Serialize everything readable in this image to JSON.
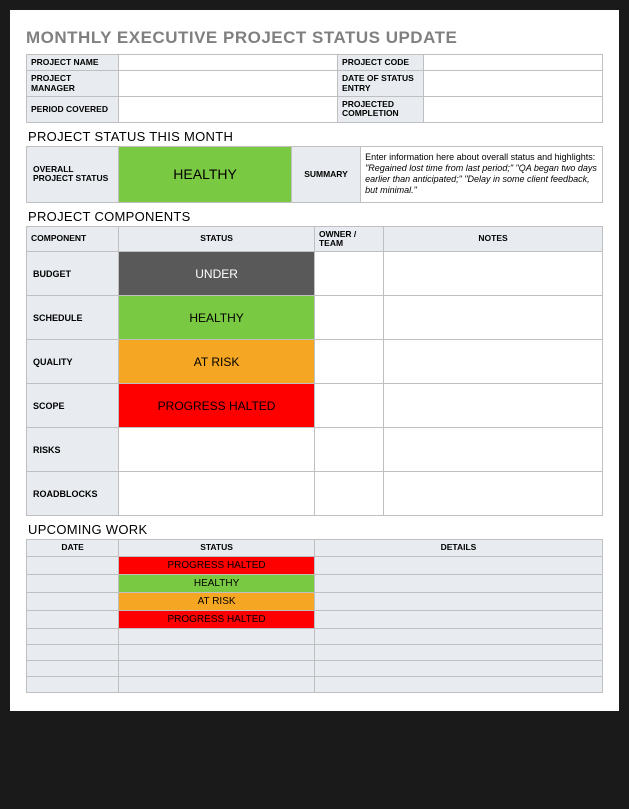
{
  "title": "MONTHLY EXECUTIVE PROJECT STATUS UPDATE",
  "colors": {
    "healthy": "#7ac943",
    "under": "#595959",
    "atrisk": "#f5a623",
    "halted": "#ff0000",
    "header_bg": "#e8ecf0",
    "border": "#bfbfbf",
    "page_bg": "#ffffff",
    "outer_bg": "#1a1a1a",
    "title_color": "#808080"
  },
  "meta": {
    "labels": {
      "project_name": "PROJECT NAME",
      "project_code": "PROJECT CODE",
      "project_manager": "PROJECT MANAGER",
      "date_of_status_entry": "DATE OF STATUS ENTRY",
      "period_covered": "PERIOD COVERED",
      "projected_completion": "PROJECTED COMPLETION"
    },
    "values": {
      "project_name": "",
      "project_code": "",
      "project_manager": "",
      "date_of_status_entry": "",
      "period_covered": "",
      "projected_completion": ""
    }
  },
  "status_this_month": {
    "section_title": "PROJECT STATUS THIS MONTH",
    "overall_label": "OVERALL PROJECT STATUS",
    "overall_value": "HEALTHY",
    "overall_status_key": "healthy",
    "summary_label": "SUMMARY",
    "summary_intro": "Enter information here about overall status and highlights: ",
    "summary_examples": "\"Regained lost time from last period;\" \"QA began two days earlier than anticipated;\" \"Delay in some client feedback, but minimal.\""
  },
  "components": {
    "section_title": "PROJECT COMPONENTS",
    "headers": {
      "component": "COMPONENT",
      "status": "STATUS",
      "owner": "OWNER / TEAM",
      "notes": "NOTES"
    },
    "rows": [
      {
        "component": "BUDGET",
        "status_text": "UNDER",
        "status_key": "under",
        "owner": "",
        "notes": ""
      },
      {
        "component": "SCHEDULE",
        "status_text": "HEALTHY",
        "status_key": "healthy",
        "owner": "",
        "notes": ""
      },
      {
        "component": "QUALITY",
        "status_text": "AT RISK",
        "status_key": "atrisk",
        "owner": "",
        "notes": ""
      },
      {
        "component": "SCOPE",
        "status_text": "PROGRESS HALTED",
        "status_key": "halted",
        "owner": "",
        "notes": ""
      },
      {
        "component": "RISKS",
        "status_text": "",
        "status_key": "",
        "owner": "",
        "notes": ""
      },
      {
        "component": "ROADBLOCKS",
        "status_text": "",
        "status_key": "",
        "owner": "",
        "notes": ""
      }
    ]
  },
  "upcoming": {
    "section_title": "UPCOMING WORK",
    "headers": {
      "date": "DATE",
      "status": "STATUS",
      "details": "DETAILS"
    },
    "rows": [
      {
        "date": "",
        "status_text": "PROGRESS HALTED",
        "status_key": "halted",
        "details": ""
      },
      {
        "date": "",
        "status_text": "HEALTHY",
        "status_key": "healthy",
        "details": ""
      },
      {
        "date": "",
        "status_text": "AT RISK",
        "status_key": "atrisk",
        "details": ""
      },
      {
        "date": "",
        "status_text": "PROGRESS HALTED",
        "status_key": "halted",
        "details": ""
      },
      {
        "date": "",
        "status_text": "",
        "status_key": "",
        "details": ""
      },
      {
        "date": "",
        "status_text": "",
        "status_key": "",
        "details": ""
      },
      {
        "date": "",
        "status_text": "",
        "status_key": "",
        "details": ""
      },
      {
        "date": "",
        "status_text": "",
        "status_key": "",
        "details": ""
      }
    ]
  }
}
